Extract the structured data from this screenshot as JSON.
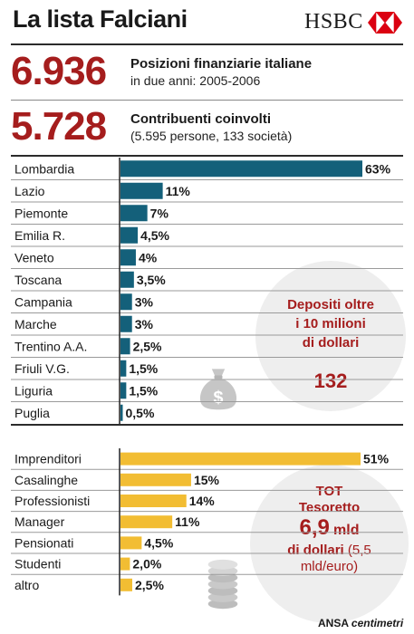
{
  "header": {
    "title": "La lista Falciani",
    "brand": "HSBC",
    "brand_color": "#db0011"
  },
  "stats": [
    {
      "number": "6.936",
      "label": "Posizioni finanziarie italiane",
      "sub": "in due anni: 2005-2006"
    },
    {
      "number": "5.728",
      "label": "Contribuenti coinvolti",
      "sub": "(5.595 persone, 133 società)"
    }
  ],
  "colors": {
    "accent_red": "#a51d1d",
    "bar_teal": "#14607a",
    "bar_yellow": "#f2bd33"
  },
  "chart_data": [
    {
      "type": "bar",
      "orientation": "horizontal",
      "categories": [
        "Lombardia",
        "Lazio",
        "Piemonte",
        "Emilia R.",
        "Veneto",
        "Toscana",
        "Campania",
        "Marche",
        "Trentino A.A.",
        "Friuli V.G.",
        "Liguria",
        "Puglia"
      ],
      "values": [
        63,
        11,
        7,
        4.5,
        4,
        3.5,
        3,
        3,
        2.5,
        1.5,
        1.5,
        0.5
      ],
      "value_labels": [
        "63%",
        "11%",
        "7%",
        "4,5%",
        "4%",
        "3,5%",
        "3%",
        "3%",
        "2,5%",
        "1,5%",
        "1,5%",
        "0,5%"
      ],
      "unit": "%",
      "color": "#14607a"
    },
    {
      "type": "bar",
      "orientation": "horizontal",
      "categories": [
        "Imprenditori",
        "Casalinghe",
        "Professionisti",
        "Manager",
        "Pensionati",
        "Studenti",
        "altro"
      ],
      "values": [
        51,
        15,
        14,
        11,
        4.5,
        2.0,
        2.5
      ],
      "value_labels": [
        "51%",
        "15%",
        "14%",
        "11%",
        "4,5%",
        "2,0%",
        "2,5%"
      ],
      "unit": "%",
      "color": "#f2bd33"
    }
  ],
  "callouts": {
    "deposits": {
      "line1": "Depositi oltre",
      "line2": "i 10 milioni",
      "line3": "di dollari",
      "value": "132"
    },
    "tesoretto": {
      "line1": "TOT",
      "line2": "Tesoretto",
      "amount": "6,9",
      "unit": "mld",
      "line4": "di dollari",
      "extra1": "(5,5",
      "extra2": "mld/euro)"
    }
  },
  "icons": {
    "money_bag": "money-bag-icon",
    "coins": "coins-stack-icon"
  },
  "credit": {
    "source": "ANSA",
    "partner": "centimetri"
  }
}
